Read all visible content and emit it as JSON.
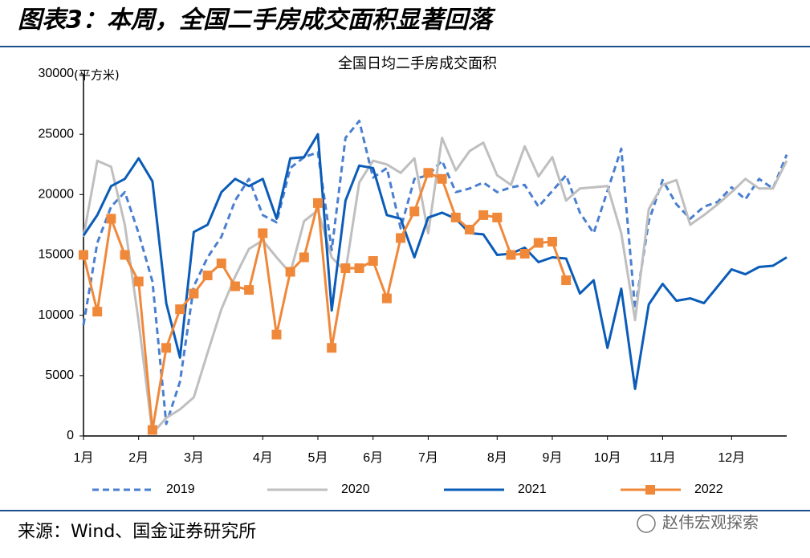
{
  "header": {
    "title": "图表3：本周，全国二手房成交面积显著回落"
  },
  "chart_data": {
    "type": "line",
    "title": "全国日均二手房成交面积",
    "y_axis_label": "(平方米)",
    "categories": [
      "1月",
      null,
      null,
      null,
      "2月",
      null,
      null,
      null,
      "3月",
      null,
      null,
      null,
      null,
      "4月",
      null,
      null,
      null,
      "5月",
      null,
      null,
      null,
      "6月",
      null,
      null,
      null,
      "7月",
      null,
      null,
      null,
      null,
      "8月",
      null,
      null,
      null,
      "9月",
      null,
      null,
      null,
      "10月",
      null,
      null,
      null,
      "11月",
      null,
      null,
      null,
      null,
      "12月",
      null,
      null,
      null,
      null
    ],
    "ylim": [
      0,
      30000
    ],
    "yticks": [
      0,
      5000,
      10000,
      15000,
      20000,
      25000,
      30000
    ],
    "legend": "bottom",
    "series": [
      {
        "name": "2019",
        "color": "#4a7fcf",
        "dashed": true,
        "values": [
          9200,
          16000,
          19000,
          20200,
          16800,
          12800,
          1000,
          4500,
          12400,
          14800,
          16500,
          19500,
          21300,
          18300,
          17700,
          22200,
          23100,
          23500,
          15400,
          24700,
          26100,
          21400,
          22200,
          17200,
          21300,
          21600,
          22800,
          20200,
          20500,
          21000,
          20200,
          20600,
          20800,
          19000,
          20300,
          21600,
          18500,
          16800,
          20300,
          23800,
          10500,
          17800,
          21200,
          19200,
          18000,
          19000,
          19400,
          20600,
          19600,
          21300,
          20500,
          23300
        ]
      },
      {
        "name": "2020",
        "color": "#bfbfbf",
        "values": [
          16500,
          22800,
          22300,
          17500,
          9500,
          200,
          1500,
          2200,
          3200,
          6900,
          10500,
          13200,
          15500,
          16200,
          14800,
          13500,
          17800,
          18700,
          14800,
          13600,
          21000,
          22800,
          22500,
          21800,
          23000,
          16800,
          24700,
          22000,
          23600,
          24300,
          21600,
          20800,
          24000,
          21500,
          23100,
          19500,
          20500,
          20600,
          20700,
          16800,
          9600,
          18800,
          20800,
          21200,
          17500,
          18300,
          19200,
          20200,
          21300,
          20500,
          20500,
          22800
        ]
      },
      {
        "name": "2021",
        "color": "#0a5cb8",
        "values": [
          16600,
          18300,
          20700,
          21300,
          23000,
          21100,
          11000,
          6500,
          16900,
          17500,
          20200,
          21300,
          20700,
          21300,
          18000,
          23000,
          23100,
          25000,
          10400,
          19500,
          22400,
          22200,
          18300,
          18000,
          14800,
          18100,
          18500,
          18000,
          16800,
          16700,
          15000,
          15100,
          15600,
          14400,
          14800,
          14700,
          11800,
          12900,
          7300,
          12200,
          3900,
          10900,
          12600,
          11200,
          11400,
          11000,
          12400,
          13800,
          13400,
          14000,
          14100,
          14800
        ]
      },
      {
        "name": "2022",
        "color": "#f0883a",
        "marker": "square",
        "values": [
          15000,
          10300,
          18000,
          15000,
          12800,
          500,
          7300,
          10500,
          11800,
          13300,
          14300,
          12400,
          12100,
          16800,
          8400,
          13600,
          14800,
          19300,
          7300,
          13900,
          13900,
          14500,
          11400,
          16400,
          18600,
          21800,
          21300,
          18100,
          17100,
          18300,
          18100,
          15000,
          15100,
          16000,
          16100,
          12900,
          null,
          null,
          null,
          null,
          null,
          null,
          null,
          null,
          null,
          null,
          null,
          null,
          null,
          null,
          null,
          null
        ]
      }
    ]
  },
  "footer": {
    "source": "来源：Wind、国金证券研究所",
    "watermark": "赵伟宏观探索"
  }
}
